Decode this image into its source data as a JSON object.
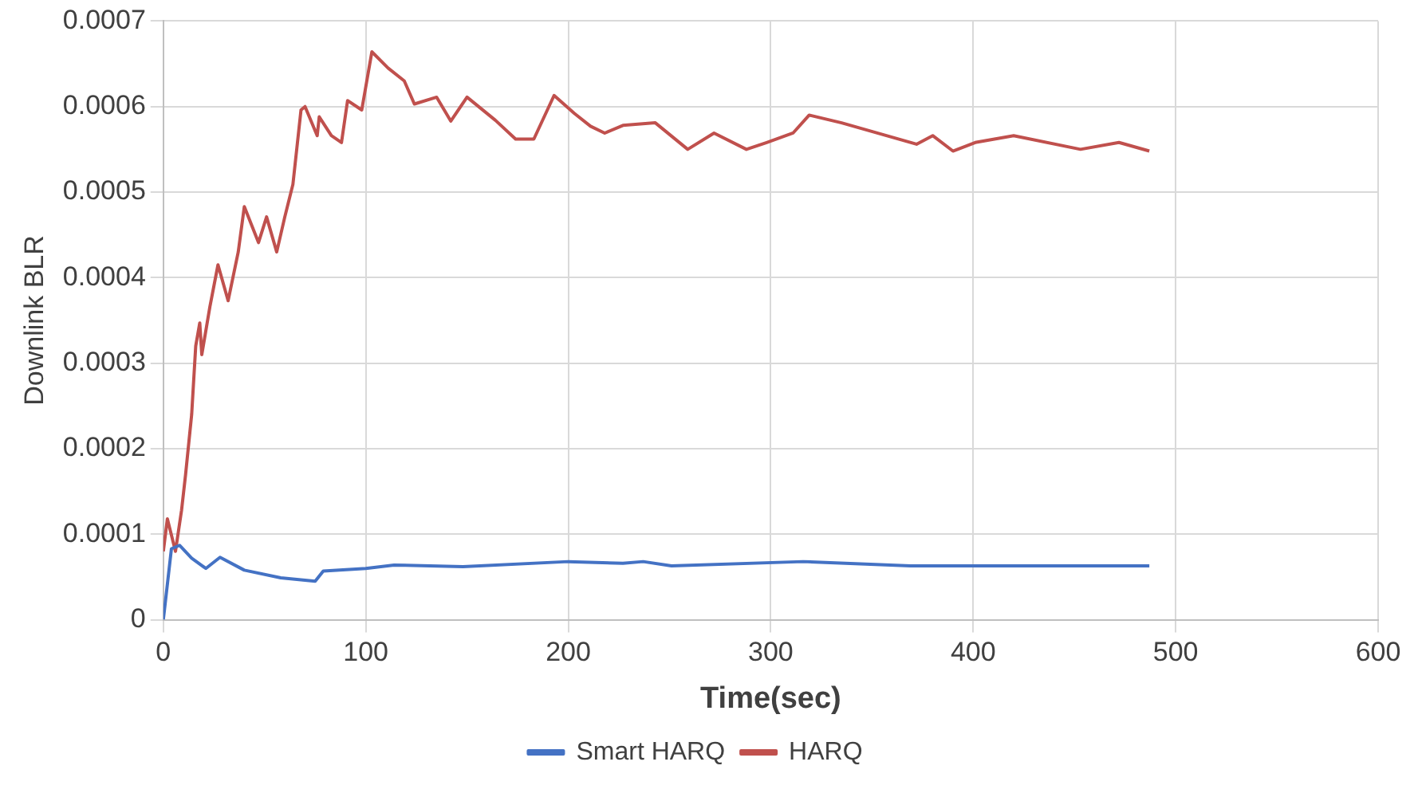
{
  "chart_data": {
    "type": "line",
    "xlabel": "Time(sec)",
    "ylabel": "Downlink BLR",
    "xlim": [
      0,
      600
    ],
    "xticks": [
      0,
      100,
      200,
      300,
      400,
      500,
      600
    ],
    "ylim": [
      0,
      0.0007
    ],
    "yticks": [
      0,
      0.0001,
      0.0002,
      0.0003,
      0.0004,
      0.0005,
      0.0006,
      0.0007
    ],
    "grid": true,
    "legend": "bottom",
    "marker": "none",
    "line_style": "solid",
    "series": [
      {
        "name": "Smart HARQ",
        "color": "#4472c4",
        "x": [
          0,
          4,
          8,
          14,
          21,
          28,
          40,
          58,
          75,
          79,
          100,
          114,
          148,
          200,
          227,
          237,
          251,
          316,
          369,
          487
        ],
        "values": [
          0,
          8.3e-05,
          8.7e-05,
          7.2e-05,
          6e-05,
          7.3e-05,
          5.8e-05,
          4.9e-05,
          4.5e-05,
          5.7e-05,
          6e-05,
          6.4e-05,
          6.2e-05,
          6.8e-05,
          6.6e-05,
          6.8e-05,
          6.3e-05,
          6.8e-05,
          6.3e-05,
          6.3e-05
        ]
      },
      {
        "name": "HARQ",
        "color": "#c0504d",
        "x": [
          0,
          2,
          6,
          9,
          11,
          14,
          16,
          18,
          19,
          23,
          27,
          32,
          37,
          40,
          47,
          51,
          56,
          60,
          64,
          68,
          70,
          76,
          77,
          83,
          88,
          91,
          98,
          103,
          111,
          119,
          124,
          135,
          142,
          150,
          164,
          174,
          183,
          193,
          203,
          211,
          218,
          227,
          243,
          259,
          272,
          288,
          298,
          311,
          319,
          335,
          372,
          380,
          390,
          401,
          420,
          453,
          472,
          487
        ],
        "values": [
          8e-05,
          0.000118,
          8e-05,
          0.000128,
          0.00017,
          0.00024,
          0.00032,
          0.000347,
          0.00031,
          0.000366,
          0.000415,
          0.000373,
          0.00043,
          0.000483,
          0.000441,
          0.000471,
          0.00043,
          0.000471,
          0.000509,
          0.000596,
          0.0006,
          0.000566,
          0.000588,
          0.000566,
          0.000558,
          0.000607,
          0.000596,
          0.000664,
          0.000645,
          0.00063,
          0.000603,
          0.000611,
          0.000583,
          0.000611,
          0.000584,
          0.000562,
          0.000562,
          0.000613,
          0.000592,
          0.000577,
          0.000569,
          0.000578,
          0.000581,
          0.00055,
          0.000569,
          0.00055,
          0.000558,
          0.000569,
          0.00059,
          0.000581,
          0.000556,
          0.000566,
          0.000548,
          0.000558,
          0.000566,
          0.00055,
          0.000558,
          0.000548
        ]
      }
    ]
  }
}
